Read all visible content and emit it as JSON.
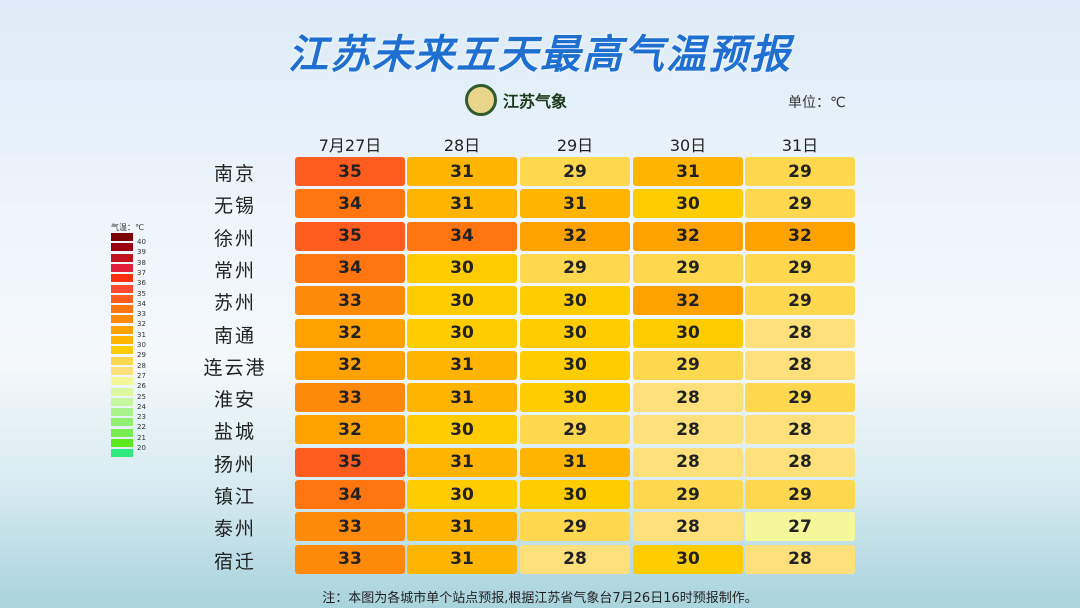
{
  "title": "江苏未来五天最高气温预报",
  "logo_text": "江苏气象",
  "unit": "单位：℃",
  "columns": [
    "7月27日",
    "28日",
    "29日",
    "30日",
    "31日"
  ],
  "cities": [
    "南京",
    "无锡",
    "徐州",
    "常州",
    "苏州",
    "南通",
    "连云港",
    "淮安",
    "盐城",
    "扬州",
    "镇江",
    "泰州",
    "宿迁"
  ],
  "values": [
    [
      35,
      31,
      29,
      31,
      29
    ],
    [
      34,
      31,
      31,
      30,
      29
    ],
    [
      35,
      34,
      32,
      32,
      32
    ],
    [
      34,
      30,
      29,
      29,
      29
    ],
    [
      33,
      30,
      30,
      32,
      29
    ],
    [
      32,
      30,
      30,
      30,
      28
    ],
    [
      32,
      31,
      30,
      29,
      28
    ],
    [
      33,
      31,
      30,
      28,
      29
    ],
    [
      32,
      30,
      29,
      28,
      28
    ],
    [
      35,
      31,
      31,
      28,
      28
    ],
    [
      34,
      30,
      30,
      29,
      29
    ],
    [
      33,
      31,
      29,
      28,
      27
    ],
    [
      33,
      31,
      28,
      30,
      28
    ]
  ],
  "legend": {
    "title": "气温：℃",
    "levels": [
      40,
      39,
      38,
      37,
      36,
      35,
      34,
      33,
      32,
      31,
      30,
      29,
      28,
      27,
      26,
      25,
      24,
      23,
      22,
      21,
      20
    ],
    "colors": {
      "41": "#7a0008",
      "40": "#9a0010",
      "39": "#c0141e",
      "38": "#e0203a",
      "37": "#ff3010",
      "36": "#ff4a30",
      "35": "#ff5c20",
      "34": "#ff7510",
      "33": "#ff8a0a",
      "32": "#ffa200",
      "31": "#ffb400",
      "30": "#ffcc00",
      "29": "#ffd850",
      "28": "#ffe07a",
      "27": "#f5f89a",
      "26": "#dcf8a0",
      "25": "#c4f7a0",
      "24": "#a8f48a",
      "23": "#90f070",
      "22": "#78ec50",
      "21": "#5ee820",
      "20": "#30ec80"
    }
  },
  "note": "注：本图为各城市单个站点预报,根据江苏省气象台7月26日16时预报制作。"
}
